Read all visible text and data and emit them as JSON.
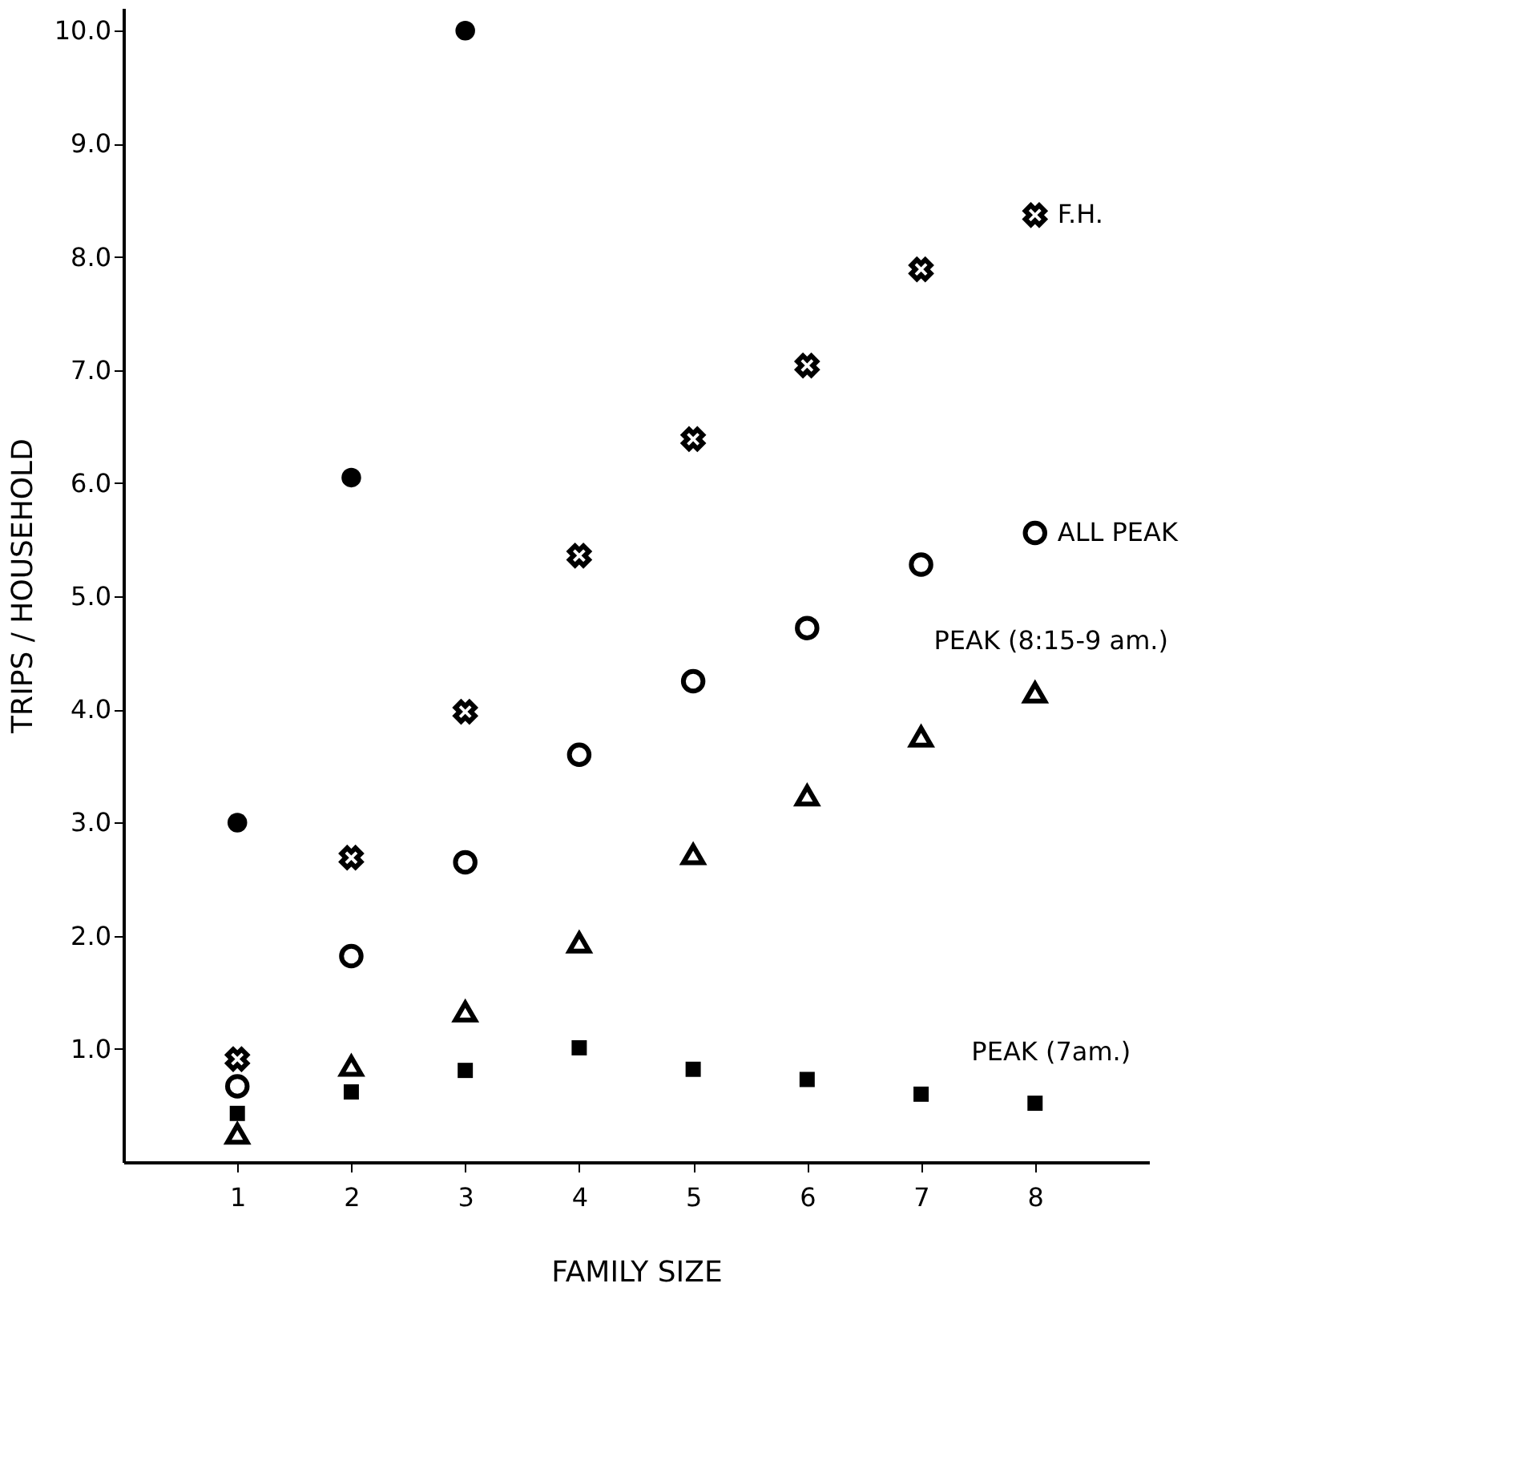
{
  "chart_data": {
    "type": "scatter",
    "xlabel": "FAMILY SIZE",
    "ylabel": "TRIPS / HOUSEHOLD",
    "x": [
      1,
      2,
      3,
      4,
      5,
      6,
      7,
      8
    ],
    "xlim": [
      0,
      9
    ],
    "xticks": [
      1,
      2,
      3,
      4,
      5,
      6,
      7,
      8
    ],
    "ylim": [
      0,
      10.2
    ],
    "yticks": [
      {
        "value": 1,
        "label": "1.0"
      },
      {
        "value": 2,
        "label": "2.0"
      },
      {
        "value": 3,
        "label": "3.0"
      },
      {
        "value": 4,
        "label": "4.0"
      },
      {
        "value": 5,
        "label": "5.0"
      },
      {
        "value": 6,
        "label": "6.0"
      },
      {
        "value": 7,
        "label": "7.0"
      },
      {
        "value": 8,
        "label": "8.0"
      },
      {
        "value": 9,
        "label": "9.0"
      },
      {
        "value": 10,
        "label": "10.0"
      }
    ],
    "grid": false,
    "series": [
      {
        "color": "#000000",
        "marker": "circle",
        "x": [
          1,
          2,
          3
        ],
        "values": [
          3.0,
          6.05,
          10.0
        ]
      },
      {
        "name": "F.H.",
        "color": "#000000",
        "marker": "cross",
        "values": [
          0.91,
          2.69,
          3.98,
          5.36,
          6.39,
          7.04,
          7.89,
          8.37
        ]
      },
      {
        "name": "ALL PEAK",
        "color": "#000000",
        "marker": "circle",
        "values": [
          0.67,
          1.82,
          2.65,
          3.6,
          4.25,
          4.72,
          5.28,
          5.56
        ]
      },
      {
        "name": "PEAK (8:15-9 am.)",
        "color": "#000000",
        "marker": "triangle",
        "values": [
          0.25,
          0.85,
          1.33,
          1.94,
          2.72,
          3.24,
          3.76,
          4.15
        ]
      },
      {
        "name": "PEAK (7am.)",
        "color": "#000000",
        "marker": "square",
        "values": [
          0.43,
          0.62,
          0.81,
          1.01,
          0.82,
          0.73,
          0.6,
          0.52
        ]
      }
    ]
  }
}
